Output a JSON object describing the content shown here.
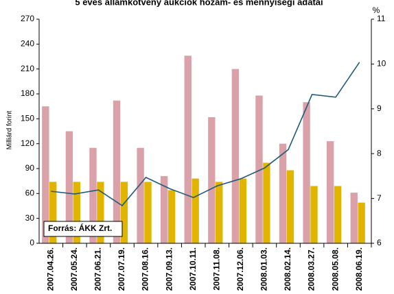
{
  "chart_data": {
    "type": "bar_line",
    "title": "5 éves államkötvény aukciók hozam- és mennyiségi adatai",
    "y_label": "Milliárd forint",
    "y2_label": "%",
    "annotation": "Forrás:  ÁKK Zrt.",
    "categories": [
      "2007.04.26.",
      "2007.05.24.",
      "2007.06.21.",
      "2007.07.19.",
      "2007.08.16.",
      "2007.09.13.",
      "2007.10.11.",
      "2007.11.08.",
      "2007.12.06.",
      "2008.01.03.",
      "2008.02.14.",
      "2008.03.27.",
      "2008.05.08.",
      "2008.06.19."
    ],
    "series": [
      {
        "kind": "bar",
        "color": "#dba1a9",
        "values": [
          165,
          135,
          115,
          172,
          115,
          81,
          226,
          152,
          210,
          178,
          120,
          170,
          123,
          61
        ]
      },
      {
        "kind": "bar",
        "color": "#e1b400",
        "values": [
          74,
          74,
          74,
          74,
          74,
          64,
          78,
          74,
          78,
          97,
          88,
          69,
          69,
          49
        ]
      },
      {
        "kind": "line",
        "axis": "y2",
        "color": "#1f5a78",
        "values": [
          7.16,
          7.1,
          7.19,
          6.84,
          7.47,
          7.22,
          7.02,
          7.28,
          7.44,
          7.68,
          8.09,
          9.32,
          9.26,
          10.04
        ]
      }
    ],
    "ylim": [
      0,
      270
    ],
    "yticks": [
      0,
      30,
      60,
      90,
      120,
      150,
      180,
      210,
      240,
      270
    ],
    "y2lim": [
      6,
      11
    ],
    "y2ticks": [
      6,
      7,
      8,
      9,
      10,
      11
    ]
  }
}
